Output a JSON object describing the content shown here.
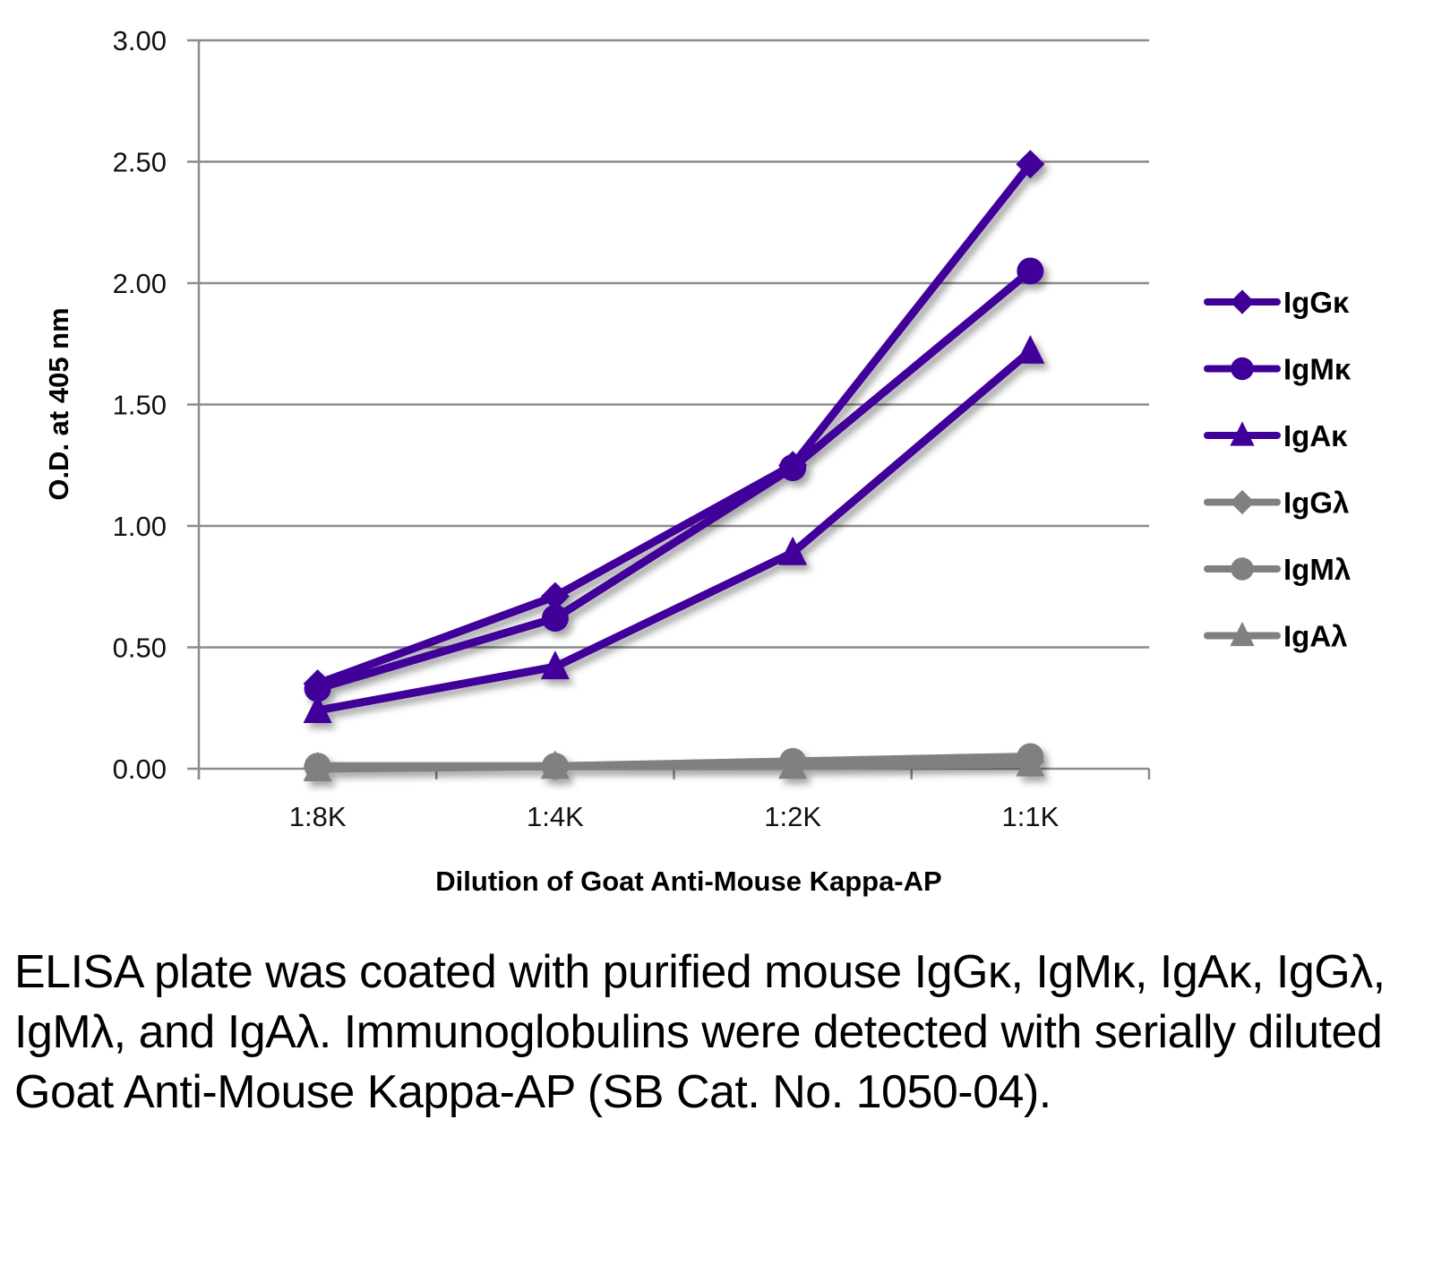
{
  "chart_data": {
    "type": "line",
    "title": "",
    "xlabel": "Dilution of Goat Anti-Mouse Kappa-AP",
    "ylabel": "O.D. at 405 nm",
    "categories": [
      "1:8K",
      "1:4K",
      "1:2K",
      "1:1K"
    ],
    "ylim": [
      0,
      3.0
    ],
    "yticks": [
      "0.00",
      "0.50",
      "1.00",
      "1.50",
      "2.00",
      "2.50",
      "3.00"
    ],
    "ytick_values": [
      0,
      0.5,
      1.0,
      1.5,
      2.0,
      2.5,
      3.0
    ],
    "grid": true,
    "legend_position": "right",
    "series": [
      {
        "name": "IgGκ",
        "marker": "diamond",
        "color": "#3f0099",
        "values": [
          0.35,
          0.71,
          1.25,
          2.49
        ]
      },
      {
        "name": "IgMκ",
        "marker": "circle",
        "color": "#3f0099",
        "values": [
          0.33,
          0.62,
          1.24,
          2.05
        ]
      },
      {
        "name": "IgAκ",
        "marker": "triangle",
        "color": "#3f0099",
        "values": [
          0.24,
          0.42,
          0.89,
          1.72
        ]
      },
      {
        "name": "IgGλ",
        "marker": "diamond",
        "color": "#808080",
        "values": [
          0.01,
          0.01,
          0.02,
          0.03
        ]
      },
      {
        "name": "IgMλ",
        "marker": "circle",
        "color": "#808080",
        "values": [
          0.01,
          0.01,
          0.03,
          0.05
        ]
      },
      {
        "name": "IgAλ",
        "marker": "triangle",
        "color": "#808080",
        "values": [
          0.0,
          0.01,
          0.01,
          0.02
        ]
      }
    ]
  },
  "caption": "ELISA plate was coated with purified mouse IgGκ, IgMκ, IgAκ, IgGλ, IgMλ, and IgAλ. Immunoglobulins were detected with serially diluted Goat Anti-Mouse Kappa-AP (SB Cat. No. 1050-04)."
}
